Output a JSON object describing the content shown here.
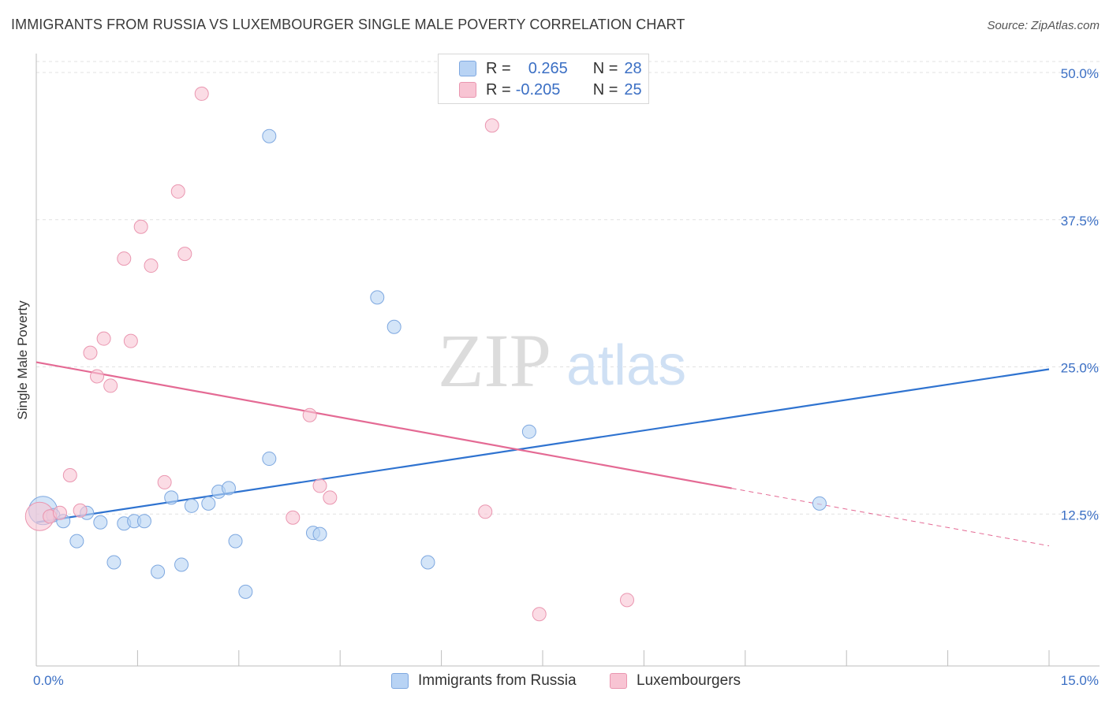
{
  "title": "IMMIGRANTS FROM RUSSIA VS LUXEMBOURGER SINGLE MALE POVERTY CORRELATION CHART",
  "source": "Source: ZipAtlas.com",
  "watermark": {
    "zip": "ZIP",
    "atlas": "atlas"
  },
  "legend": {
    "r_label": "R =",
    "n_label": "N =",
    "series1": {
      "r": "0.265",
      "n": "28"
    },
    "series2": {
      "r": "-0.205",
      "n": "25"
    }
  },
  "bottom_legend": {
    "series1": "Immigrants from Russia",
    "series2": "Luxembourgers"
  },
  "chart_data": {
    "type": "scatter",
    "title": "IMMIGRANTS FROM RUSSIA VS LUXEMBOURGER SINGLE MALE POVERTY CORRELATION CHART",
    "xlabel": "",
    "ylabel": "Single Male Poverty",
    "xlim": [
      0,
      15
    ],
    "ylim": [
      0,
      50
    ],
    "x_tick_labels": [
      "0.0%",
      "15.0%"
    ],
    "y_ticks": [
      12.5,
      25.0,
      37.5,
      50.0
    ],
    "y_tick_labels": [
      "12.5%",
      "25.0%",
      "37.5%",
      "50.0%"
    ],
    "colors": {
      "series1_fill": "#b8d3f4",
      "series1_stroke": "#7ea8e0",
      "series1_line": "#2f73d0",
      "series2_fill": "#f8c4d3",
      "series2_stroke": "#ea96b0",
      "series2_line": "#e46a94",
      "axis_text": "#3b6fc4"
    },
    "series": [
      {
        "name": "Immigrants from Russia",
        "R": 0.265,
        "N": 28,
        "trend": {
          "x": [
            0,
            15
          ],
          "y": [
            12.2,
            25.2
          ],
          "solid_to": 15
        },
        "points": [
          {
            "x": 0.1,
            "y": 13.2,
            "large": true
          },
          {
            "x": 0.25,
            "y": 12.8
          },
          {
            "x": 0.4,
            "y": 12.3
          },
          {
            "x": 0.6,
            "y": 10.6
          },
          {
            "x": 0.75,
            "y": 13.0
          },
          {
            "x": 0.95,
            "y": 12.2
          },
          {
            "x": 1.15,
            "y": 8.8
          },
          {
            "x": 1.3,
            "y": 12.1
          },
          {
            "x": 1.45,
            "y": 12.3
          },
          {
            "x": 1.6,
            "y": 12.3
          },
          {
            "x": 1.8,
            "y": 8.0
          },
          {
            "x": 2.0,
            "y": 14.3
          },
          {
            "x": 2.15,
            "y": 8.6
          },
          {
            "x": 2.3,
            "y": 13.6
          },
          {
            "x": 2.55,
            "y": 13.8
          },
          {
            "x": 2.7,
            "y": 14.8
          },
          {
            "x": 2.85,
            "y": 15.1
          },
          {
            "x": 2.95,
            "y": 10.6
          },
          {
            "x": 3.1,
            "y": 6.3
          },
          {
            "x": 3.45,
            "y": 17.6
          },
          {
            "x": 3.45,
            "y": 45.0
          },
          {
            "x": 4.1,
            "y": 11.3
          },
          {
            "x": 4.2,
            "y": 11.2
          },
          {
            "x": 5.05,
            "y": 31.3
          },
          {
            "x": 5.3,
            "y": 28.8
          },
          {
            "x": 5.8,
            "y": 8.8
          },
          {
            "x": 7.3,
            "y": 19.9
          },
          {
            "x": 11.6,
            "y": 13.8
          }
        ]
      },
      {
        "name": "Luxembourgers",
        "R": -0.205,
        "N": 25,
        "trend": {
          "x": [
            0,
            15
          ],
          "y": [
            25.8,
            10.2
          ],
          "solid_to": 10.3
        },
        "points": [
          {
            "x": 0.05,
            "y": 12.7,
            "large": true
          },
          {
            "x": 0.2,
            "y": 12.7
          },
          {
            "x": 0.35,
            "y": 13.0
          },
          {
            "x": 0.5,
            "y": 16.2
          },
          {
            "x": 0.65,
            "y": 13.2
          },
          {
            "x": 0.8,
            "y": 26.6
          },
          {
            "x": 0.9,
            "y": 24.6
          },
          {
            "x": 1.0,
            "y": 27.8
          },
          {
            "x": 1.1,
            "y": 23.8
          },
          {
            "x": 1.3,
            "y": 34.6
          },
          {
            "x": 1.4,
            "y": 27.6
          },
          {
            "x": 1.55,
            "y": 37.3
          },
          {
            "x": 1.7,
            "y": 34.0
          },
          {
            "x": 1.9,
            "y": 15.6
          },
          {
            "x": 2.1,
            "y": 40.3
          },
          {
            "x": 2.2,
            "y": 35.0
          },
          {
            "x": 2.45,
            "y": 48.6
          },
          {
            "x": 3.8,
            "y": 12.6
          },
          {
            "x": 4.05,
            "y": 21.3
          },
          {
            "x": 4.2,
            "y": 15.3
          },
          {
            "x": 4.35,
            "y": 14.3
          },
          {
            "x": 6.65,
            "y": 13.1
          },
          {
            "x": 6.75,
            "y": 45.9
          },
          {
            "x": 7.45,
            "y": 4.4
          },
          {
            "x": 8.75,
            "y": 5.6
          }
        ]
      }
    ]
  }
}
